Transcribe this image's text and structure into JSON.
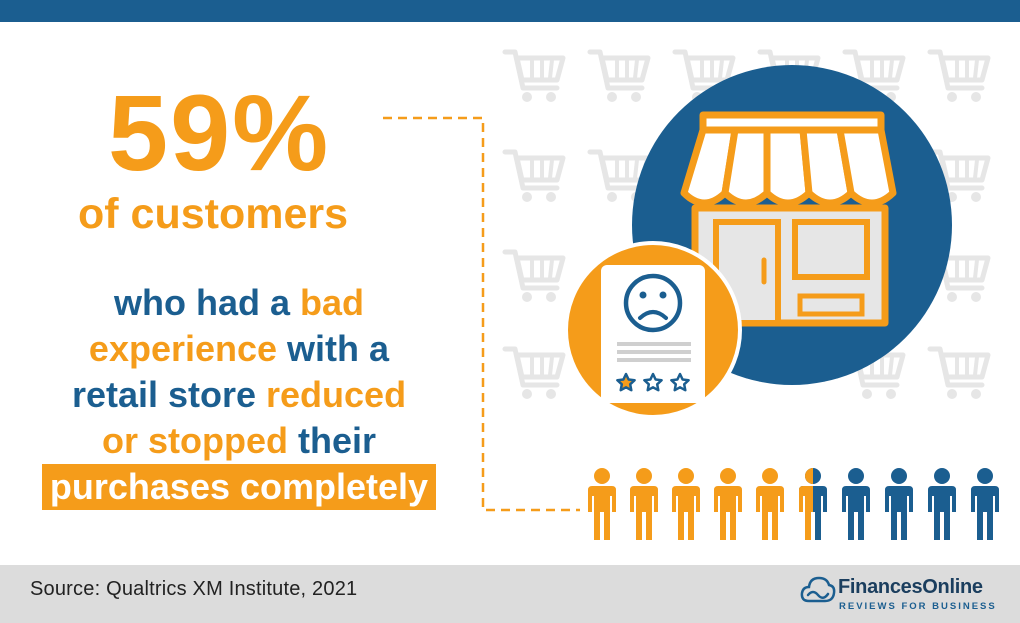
{
  "headline": {
    "percentage": "59%",
    "subject": "of customers"
  },
  "statement": {
    "parts": [
      "who had a ",
      "bad",
      "experience",
      " with a",
      "retail store",
      " reduced",
      "or stopped",
      " their",
      "purchases completely"
    ]
  },
  "people_chart": {
    "total_figures": 10,
    "highlighted_share": 0.59
  },
  "review_card": {
    "face": "sad-face-icon",
    "stars_total": 3,
    "stars_filled": 1
  },
  "footer": {
    "source": "Source: Qualtrics XM Institute, 2021",
    "brand_name": "FinancesOnline",
    "brand_tagline": "REVIEWS FOR BUSINESS"
  },
  "colors": {
    "orange": "#f59c1a",
    "blue": "#1b5e90",
    "gray_bg": "#dcdcdc",
    "cart_gray": "#e6e6e6"
  }
}
